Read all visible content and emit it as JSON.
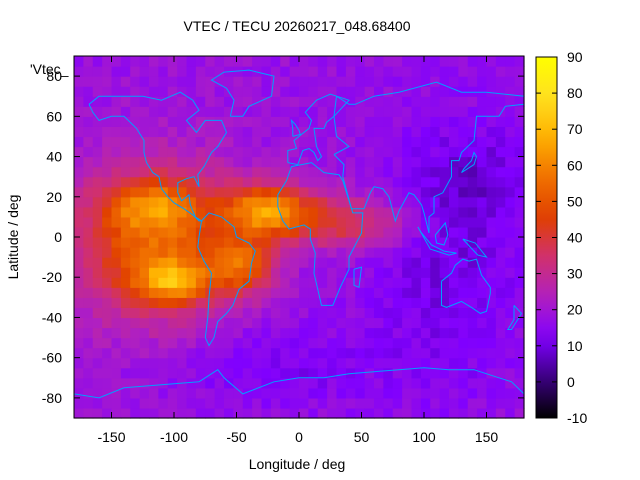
{
  "chart_data": {
    "type": "heatmap",
    "title": "VTEC / TECU 20260217_048.68400",
    "xlabel": "Longitude / deg",
    "ylabel": "Latitude / deg",
    "key_label": "'Vtec_",
    "xlim": [
      -180,
      180
    ],
    "ylim": [
      -90,
      90
    ],
    "x_ticks": [
      -150,
      -100,
      -50,
      0,
      50,
      100,
      150
    ],
    "y_ticks": [
      -80,
      -60,
      -40,
      -20,
      0,
      20,
      40,
      60,
      80
    ],
    "colorbar": {
      "range": [
        -10,
        90
      ],
      "ticks": [
        -10,
        0,
        10,
        20,
        30,
        40,
        50,
        60,
        70,
        80,
        90
      ],
      "palette": [
        "#000000",
        "#3b0080",
        "#8000ff",
        "#b020c0",
        "#d03070",
        "#e04000",
        "#f07000",
        "#ffb000",
        "#ffe020",
        "#ffff00"
      ]
    },
    "background_vtec": 18,
    "features": [
      {
        "name": "pacific-enhancement",
        "lon": -120,
        "lat": 0,
        "peak_vtec": 62
      },
      {
        "name": "south-pacific-peak",
        "lon": -100,
        "lat": -22,
        "peak_vtec": 82
      },
      {
        "name": "north-crest",
        "lon": -110,
        "lat": 15,
        "peak_vtec": 65
      },
      {
        "name": "atlantic-crest-north",
        "lon": -30,
        "lat": 15,
        "peak_vtec": 68
      },
      {
        "name": "atlantic-crest-south",
        "lon": -40,
        "lat": -12,
        "peak_vtec": 60
      },
      {
        "name": "africa-tail",
        "lon": 40,
        "lat": 10,
        "peak_vtec": 45
      }
    ],
    "coastline_color": "#00a0ff"
  }
}
